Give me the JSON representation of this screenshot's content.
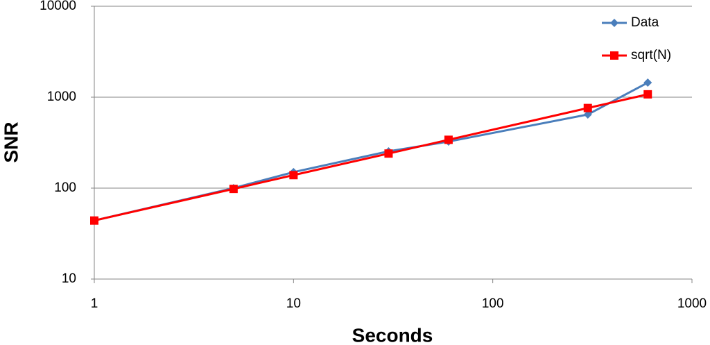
{
  "chart_data": {
    "type": "line",
    "x_label": "Seconds",
    "y_label": "SNR",
    "x": [
      1,
      5,
      10,
      30,
      60,
      300,
      600
    ],
    "series": [
      {
        "name": "Data",
        "color": "#4a7ebb",
        "marker": "diamond",
        "values": [
          44,
          100,
          150,
          254,
          325,
          645,
          1445
        ]
      },
      {
        "name": "sqrt(N)",
        "color": "#ff0000",
        "marker": "square",
        "values": [
          44,
          98,
          139,
          240,
          340,
          760,
          1075
        ]
      }
    ],
    "xlim": [
      1,
      1000
    ],
    "xticks": [
      1,
      10,
      100,
      1000
    ],
    "xscale": "log",
    "ylim": [
      10,
      10000
    ],
    "yticks": [
      10,
      100,
      1000,
      10000
    ],
    "yscale": "log",
    "grid": true,
    "legend": "top-right"
  }
}
